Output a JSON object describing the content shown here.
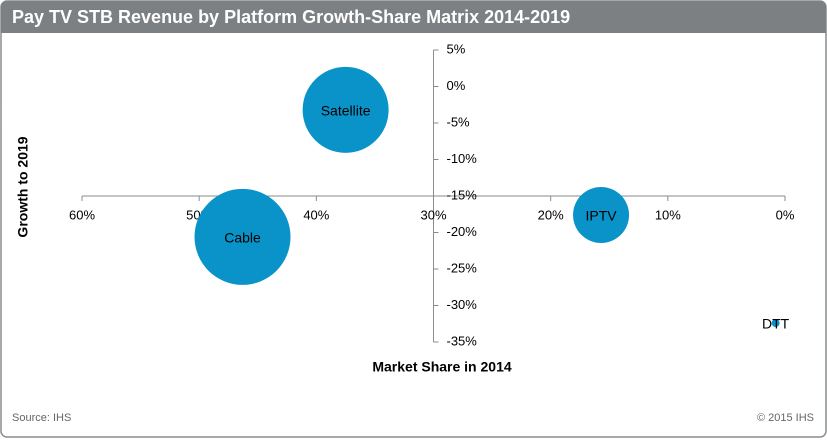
{
  "chart_data": {
    "type": "bubble",
    "title": "Pay TV STB Revenue by Platform Growth-Share Matrix 2014-2019",
    "x_label": "Market Share in 2014",
    "y_label": "Growth to 2019",
    "source": "Source: IHS",
    "copyright": "© 2015 IHS",
    "color": "#0a93c8",
    "labels": [
      "Satellite",
      "Cable",
      "IPTV",
      "DTT"
    ],
    "x": [
      37.5,
      46.3,
      15.7,
      0.8
    ],
    "y": [
      -3.2,
      -20.6,
      -17.6,
      -32.4
    ],
    "sizes": [
      1849,
      2304,
      784,
      16
    ],
    "xlim": [
      60,
      0
    ],
    "ylim": [
      -35,
      5
    ],
    "xticks": [
      {
        "value": 60,
        "label": "60%"
      },
      {
        "value": 50,
        "label": "50%"
      },
      {
        "value": 40,
        "label": "40%"
      },
      {
        "value": 30,
        "label": "30%"
      },
      {
        "value": 20,
        "label": "20%"
      },
      {
        "value": 10,
        "label": "10%"
      },
      {
        "value": 0,
        "label": "0%"
      }
    ],
    "yticks": [
      {
        "value": 5,
        "label": "5%"
      },
      {
        "value": 0,
        "label": "0%"
      },
      {
        "value": -5,
        "label": "-5%"
      },
      {
        "value": -10,
        "label": "-10%"
      },
      {
        "value": -15,
        "label": "-15%"
      },
      {
        "value": -20,
        "label": "-20%"
      },
      {
        "value": -25,
        "label": "-25%"
      },
      {
        "value": -30,
        "label": "-30%"
      },
      {
        "value": -35,
        "label": "-35%"
      }
    ],
    "x_axis_at_y": -15,
    "y_axis_at_x": 30
  }
}
